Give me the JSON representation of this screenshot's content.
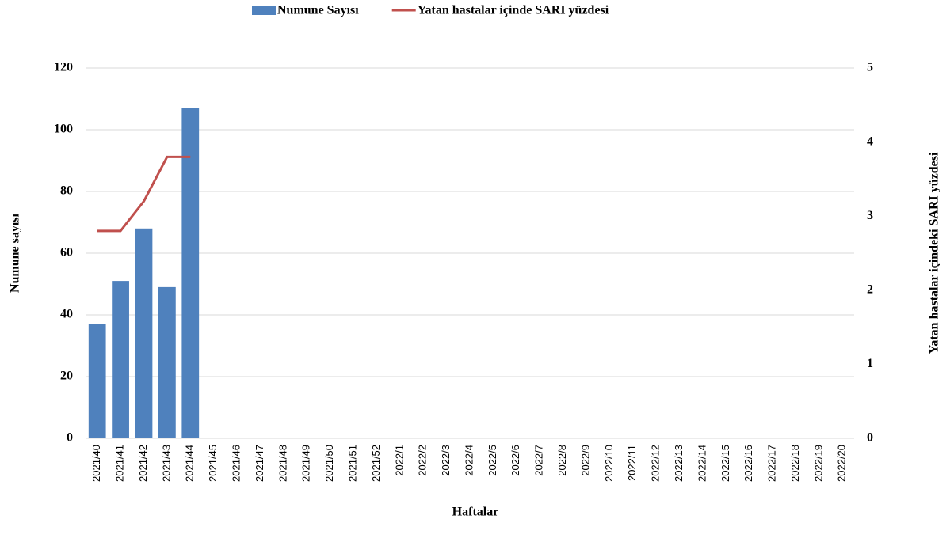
{
  "chart_data": {
    "type": "bar",
    "x_label": "Haftalar",
    "y_label": "Numune sayısı",
    "y2_label": "Yatan hastalar içindeki SARI yüzdesi",
    "categories": [
      "2021/40",
      "2021/41",
      "2021/42",
      "2021/43",
      "2021/44",
      "2021/45",
      "2021/46",
      "2021/47",
      "2021/48",
      "2021/49",
      "2021/50",
      "2021/51",
      "2021/52",
      "2022/1",
      "2022/2",
      "2022/3",
      "2022/4",
      "2022/5",
      "2022/6",
      "2022/7",
      "2022/8",
      "2022/9",
      "2022/10",
      "2022/11",
      "2022/12",
      "2022/13",
      "2022/14",
      "2022/15",
      "2022/16",
      "2022/17",
      "2022/18",
      "2022/19",
      "2022/20"
    ],
    "series": [
      {
        "name": "Numune Sayısı",
        "type": "bar",
        "color": "#4f81bd",
        "values": [
          37,
          51,
          68,
          49,
          107,
          null,
          null,
          null,
          null,
          null,
          null,
          null,
          null,
          null,
          null,
          null,
          null,
          null,
          null,
          null,
          null,
          null,
          null,
          null,
          null,
          null,
          null,
          null,
          null,
          null,
          null,
          null,
          null
        ]
      },
      {
        "name": "Yatan hastalar içinde SARI yüzdesi",
        "type": "line",
        "axis": "y2",
        "color": "#c0504d",
        "values": [
          2.8,
          2.8,
          3.2,
          3.8,
          3.8,
          null,
          null,
          null,
          null,
          null,
          null,
          null,
          null,
          null,
          null,
          null,
          null,
          null,
          null,
          null,
          null,
          null,
          null,
          null,
          null,
          null,
          null,
          null,
          null,
          null,
          null,
          null,
          null
        ]
      }
    ],
    "ylim": [
      0,
      120
    ],
    "yticks": [
      0,
      20,
      40,
      60,
      80,
      100,
      120
    ],
    "y2lim": [
      0,
      5
    ],
    "y2ticks": [
      0,
      1,
      2,
      3,
      4,
      5
    ],
    "grid": true,
    "legend": "top"
  }
}
